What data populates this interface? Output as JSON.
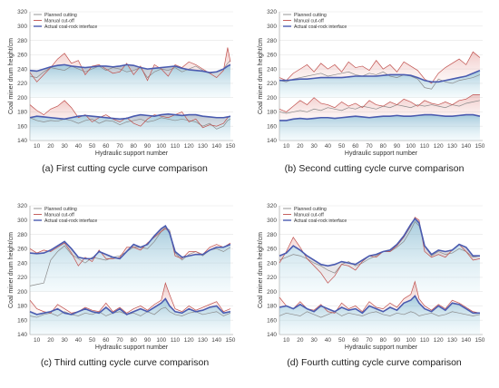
{
  "chart_data": [
    {
      "type": "line",
      "caption": "(a)  First cutting cycle curve comparison",
      "xlabel": "Hydraulic support number",
      "ylabel": "Coal miner drum height/cm",
      "xlim": [
        5,
        152
      ],
      "ylim": [
        140,
        320
      ],
      "xticks": [
        10,
        20,
        30,
        40,
        50,
        60,
        70,
        80,
        90,
        100,
        110,
        120,
        130,
        140,
        150
      ],
      "yticks": [
        140,
        160,
        180,
        200,
        220,
        240,
        260,
        280,
        300,
        320
      ],
      "legend": [
        "Planned cutting",
        "Manual cut-off",
        "Actual coal-rock interface"
      ],
      "colors": {
        "planned": "#8a8a8a",
        "manual": "#c0504d",
        "actual": "#4a5bb0"
      },
      "upper": {
        "x": [
          5,
          10,
          15,
          20,
          25,
          30,
          35,
          40,
          45,
          50,
          55,
          60,
          65,
          70,
          75,
          80,
          85,
          90,
          95,
          100,
          105,
          110,
          115,
          120,
          125,
          130,
          135,
          140,
          145,
          148,
          150
        ],
        "planned": [
          230,
          228,
          236,
          242,
          240,
          238,
          244,
          240,
          236,
          240,
          244,
          238,
          242,
          240,
          236,
          238,
          242,
          228,
          236,
          240,
          238,
          242,
          236,
          240,
          244,
          238,
          234,
          236,
          240,
          248,
          252
        ],
        "manual": [
          235,
          222,
          232,
          242,
          254,
          262,
          248,
          252,
          232,
          244,
          246,
          240,
          234,
          236,
          248,
          232,
          244,
          224,
          246,
          240,
          230,
          246,
          242,
          250,
          246,
          240,
          234,
          228,
          238,
          270,
          250
        ],
        "actual": [
          238,
          237,
          240,
          243,
          245,
          246,
          244,
          243,
          242,
          243,
          244,
          244,
          243,
          244,
          246,
          245,
          242,
          240,
          241,
          242,
          243,
          244,
          241,
          239,
          238,
          237,
          235,
          236,
          240,
          244,
          246
        ]
      },
      "lower": {
        "x": [
          5,
          10,
          15,
          20,
          25,
          30,
          35,
          40,
          45,
          50,
          55,
          60,
          65,
          70,
          75,
          80,
          85,
          90,
          95,
          100,
          105,
          110,
          115,
          120,
          125,
          130,
          135,
          140,
          145,
          148,
          150
        ],
        "planned": [
          172,
          168,
          166,
          168,
          167,
          170,
          168,
          164,
          168,
          170,
          164,
          168,
          167,
          162,
          166,
          168,
          170,
          166,
          168,
          172,
          170,
          168,
          170,
          168,
          166,
          160,
          164,
          156,
          160,
          168,
          170
        ],
        "manual": [
          190,
          182,
          176,
          184,
          188,
          196,
          186,
          172,
          176,
          166,
          172,
          176,
          170,
          166,
          172,
          164,
          160,
          170,
          176,
          174,
          172,
          176,
          180,
          166,
          170,
          158,
          162,
          160,
          164,
          172,
          174
        ],
        "actual": [
          172,
          174,
          173,
          172,
          171,
          170,
          172,
          174,
          175,
          174,
          173,
          172,
          171,
          170,
          171,
          174,
          176,
          175,
          174,
          176,
          177,
          176,
          175,
          176,
          176,
          174,
          173,
          172,
          172,
          173,
          174
        ]
      }
    },
    {
      "type": "line",
      "caption": "(b)  Second cutting cycle curve comparison",
      "xlabel": "Hydraulic support number",
      "ylabel": "Coal miner drum height/cm",
      "xlim": [
        5,
        152
      ],
      "ylim": [
        140,
        320
      ],
      "xticks": [
        10,
        20,
        30,
        40,
        50,
        60,
        70,
        80,
        90,
        100,
        110,
        120,
        130,
        140,
        150
      ],
      "yticks": [
        140,
        160,
        180,
        200,
        220,
        240,
        260,
        280,
        300,
        320
      ],
      "legend": [
        "Planned cutting",
        "Manual cut-off",
        "Actual coal-rock interface"
      ],
      "colors": {
        "planned": "#8a8a8a",
        "manual": "#c0504d",
        "actual": "#4a5bb0"
      },
      "upper": {
        "x": [
          5,
          10,
          15,
          20,
          25,
          30,
          35,
          40,
          45,
          50,
          55,
          60,
          65,
          70,
          75,
          80,
          85,
          90,
          95,
          100,
          105,
          110,
          115,
          120,
          125,
          130,
          135,
          140,
          145,
          150
        ],
        "planned": [
          224,
          222,
          226,
          228,
          230,
          232,
          234,
          230,
          232,
          234,
          236,
          232,
          230,
          234,
          232,
          236,
          230,
          228,
          232,
          230,
          226,
          214,
          212,
          226,
          222,
          220,
          224,
          226,
          228,
          232
        ],
        "manual": [
          228,
          224,
          234,
          240,
          246,
          236,
          248,
          240,
          246,
          236,
          250,
          242,
          244,
          238,
          252,
          240,
          246,
          236,
          250,
          244,
          238,
          226,
          220,
          234,
          242,
          248,
          254,
          246,
          264,
          256
        ],
        "actual": [
          224,
          224,
          225,
          226,
          226,
          227,
          228,
          228,
          228,
          228,
          229,
          230,
          230,
          230,
          230,
          231,
          232,
          232,
          232,
          231,
          228,
          224,
          222,
          222,
          224,
          226,
          228,
          230,
          234,
          238
        ]
      },
      "lower": {
        "x": [
          5,
          10,
          15,
          20,
          25,
          30,
          35,
          40,
          45,
          50,
          55,
          60,
          65,
          70,
          75,
          80,
          85,
          90,
          95,
          100,
          105,
          110,
          115,
          120,
          125,
          130,
          135,
          140,
          145,
          150
        ],
        "planned": [
          180,
          178,
          180,
          182,
          180,
          184,
          182,
          186,
          184,
          182,
          186,
          184,
          188,
          186,
          184,
          188,
          186,
          190,
          188,
          186,
          190,
          188,
          190,
          188,
          186,
          190,
          188,
          192,
          194,
          196
        ],
        "manual": [
          184,
          180,
          188,
          196,
          190,
          200,
          192,
          190,
          186,
          194,
          188,
          192,
          186,
          196,
          190,
          188,
          194,
          190,
          198,
          194,
          188,
          196,
          192,
          190,
          194,
          190,
          196,
          198,
          204,
          204
        ],
        "actual": [
          168,
          168,
          170,
          171,
          170,
          171,
          172,
          172,
          171,
          172,
          173,
          174,
          173,
          172,
          173,
          174,
          174,
          175,
          174,
          174,
          175,
          176,
          176,
          175,
          174,
          174,
          175,
          176,
          176,
          174
        ]
      }
    },
    {
      "type": "line",
      "caption": "(c)  Third cutting cycle curve comparison",
      "xlabel": "Hydraulic support number",
      "ylabel": "Coal miner drum height/cm",
      "xlim": [
        5,
        152
      ],
      "ylim": [
        140,
        320
      ],
      "xticks": [
        10,
        20,
        30,
        40,
        50,
        60,
        70,
        80,
        90,
        100,
        110,
        120,
        130,
        140,
        150
      ],
      "yticks": [
        140,
        160,
        180,
        200,
        220,
        240,
        260,
        280,
        300,
        320
      ],
      "legend": [
        "Planned cutting",
        "Manual cut-off",
        "Actual coal-rock interface"
      ],
      "colors": {
        "planned": "#8a8a8a",
        "manual": "#c0504d",
        "actual": "#4a5bb0"
      },
      "upper": {
        "x": [
          5,
          10,
          15,
          20,
          25,
          30,
          35,
          40,
          45,
          50,
          55,
          60,
          65,
          70,
          75,
          80,
          85,
          90,
          95,
          100,
          103,
          106,
          110,
          115,
          120,
          125,
          130,
          135,
          140,
          145,
          150
        ],
        "planned": [
          208,
          210,
          212,
          244,
          256,
          264,
          252,
          246,
          240,
          248,
          246,
          244,
          248,
          250,
          256,
          262,
          262,
          260,
          270,
          284,
          290,
          286,
          254,
          244,
          252,
          256,
          250,
          258,
          260,
          256,
          262
        ],
        "manual": [
          260,
          254,
          258,
          256,
          262,
          268,
          254,
          236,
          248,
          242,
          258,
          246,
          246,
          248,
          262,
          262,
          258,
          268,
          276,
          284,
          288,
          284,
          250,
          246,
          256,
          256,
          252,
          262,
          266,
          262,
          268
        ],
        "actual": [
          254,
          253,
          254,
          258,
          264,
          270,
          260,
          248,
          246,
          246,
          256,
          252,
          248,
          246,
          256,
          266,
          262,
          266,
          278,
          288,
          292,
          282,
          256,
          248,
          250,
          252,
          252,
          258,
          262,
          262,
          266
        ]
      },
      "lower": {
        "x": [
          5,
          10,
          15,
          20,
          25,
          30,
          35,
          40,
          45,
          50,
          55,
          60,
          65,
          70,
          75,
          80,
          85,
          90,
          95,
          100,
          103,
          106,
          110,
          115,
          120,
          125,
          130,
          135,
          140,
          145,
          150
        ],
        "planned": [
          166,
          164,
          168,
          170,
          166,
          172,
          168,
          166,
          170,
          168,
          172,
          166,
          170,
          172,
          168,
          170,
          166,
          172,
          168,
          176,
          178,
          172,
          168,
          166,
          170,
          172,
          168,
          170,
          172,
          166,
          170
        ],
        "manual": [
          188,
          176,
          172,
          170,
          182,
          176,
          170,
          172,
          178,
          174,
          172,
          184,
          172,
          178,
          170,
          176,
          180,
          174,
          182,
          188,
          212,
          196,
          176,
          172,
          180,
          174,
          178,
          182,
          186,
          172,
          176
        ],
        "actual": [
          172,
          168,
          170,
          172,
          176,
          170,
          168,
          172,
          176,
          172,
          170,
          178,
          170,
          176,
          168,
          172,
          176,
          172,
          178,
          184,
          190,
          180,
          172,
          170,
          176,
          172,
          174,
          178,
          180,
          170,
          172
        ]
      }
    },
    {
      "type": "line",
      "caption": "(d)  Fourth cutting cycle curve comparison",
      "xlabel": "Hydraulic support number",
      "ylabel": "Coal miner drum height/cm",
      "xlim": [
        5,
        152
      ],
      "ylim": [
        140,
        320
      ],
      "xticks": [
        10,
        20,
        30,
        40,
        50,
        60,
        70,
        80,
        90,
        100,
        110,
        120,
        130,
        140,
        150
      ],
      "yticks": [
        140,
        160,
        180,
        200,
        220,
        240,
        260,
        280,
        300,
        320
      ],
      "legend": [
        "Planned cutting",
        "Manual cut-off",
        "Actual coal-rock interface"
      ],
      "colors": {
        "planned": "#8a8a8a",
        "manual": "#c0504d",
        "actual": "#4a5bb0"
      },
      "upper": {
        "x": [
          5,
          10,
          15,
          20,
          25,
          30,
          35,
          40,
          45,
          50,
          55,
          60,
          65,
          70,
          75,
          80,
          85,
          90,
          95,
          100,
          103,
          106,
          110,
          115,
          120,
          125,
          130,
          135,
          140,
          145,
          150
        ],
        "planned": [
          244,
          248,
          252,
          250,
          246,
          240,
          236,
          230,
          226,
          238,
          242,
          236,
          240,
          246,
          250,
          256,
          256,
          262,
          270,
          286,
          298,
          292,
          264,
          250,
          256,
          252,
          254,
          260,
          256,
          248,
          250
        ],
        "manual": [
          240,
          256,
          276,
          262,
          246,
          236,
          226,
          212,
          222,
          238,
          236,
          230,
          242,
          250,
          248,
          256,
          256,
          264,
          276,
          292,
          304,
          300,
          256,
          248,
          252,
          248,
          258,
          266,
          256,
          244,
          246
        ],
        "actual": [
          250,
          254,
          264,
          258,
          250,
          244,
          238,
          236,
          238,
          242,
          240,
          238,
          244,
          250,
          252,
          256,
          258,
          266,
          278,
          294,
          302,
          296,
          264,
          252,
          258,
          256,
          258,
          266,
          262,
          250,
          250
        ]
      },
      "lower": {
        "x": [
          5,
          10,
          15,
          20,
          25,
          30,
          35,
          40,
          45,
          50,
          55,
          60,
          65,
          70,
          75,
          80,
          85,
          90,
          95,
          100,
          103,
          106,
          110,
          115,
          120,
          125,
          130,
          135,
          140,
          145,
          150
        ],
        "planned": [
          166,
          170,
          168,
          166,
          172,
          168,
          164,
          168,
          172,
          166,
          170,
          168,
          166,
          170,
          172,
          168,
          166,
          170,
          168,
          172,
          170,
          166,
          168,
          170,
          166,
          168,
          172,
          170,
          168,
          166,
          168
        ],
        "manual": [
          192,
          180,
          176,
          186,
          176,
          174,
          182,
          172,
          170,
          184,
          176,
          180,
          172,
          186,
          178,
          176,
          184,
          178,
          190,
          196,
          214,
          190,
          180,
          174,
          182,
          176,
          188,
          184,
          178,
          172,
          170
        ],
        "actual": [
          178,
          180,
          176,
          182,
          176,
          172,
          180,
          176,
          172,
          178,
          174,
          176,
          170,
          180,
          176,
          172,
          178,
          174,
          184,
          188,
          194,
          184,
          176,
          172,
          180,
          174,
          184,
          182,
          176,
          170,
          170
        ]
      }
    }
  ]
}
